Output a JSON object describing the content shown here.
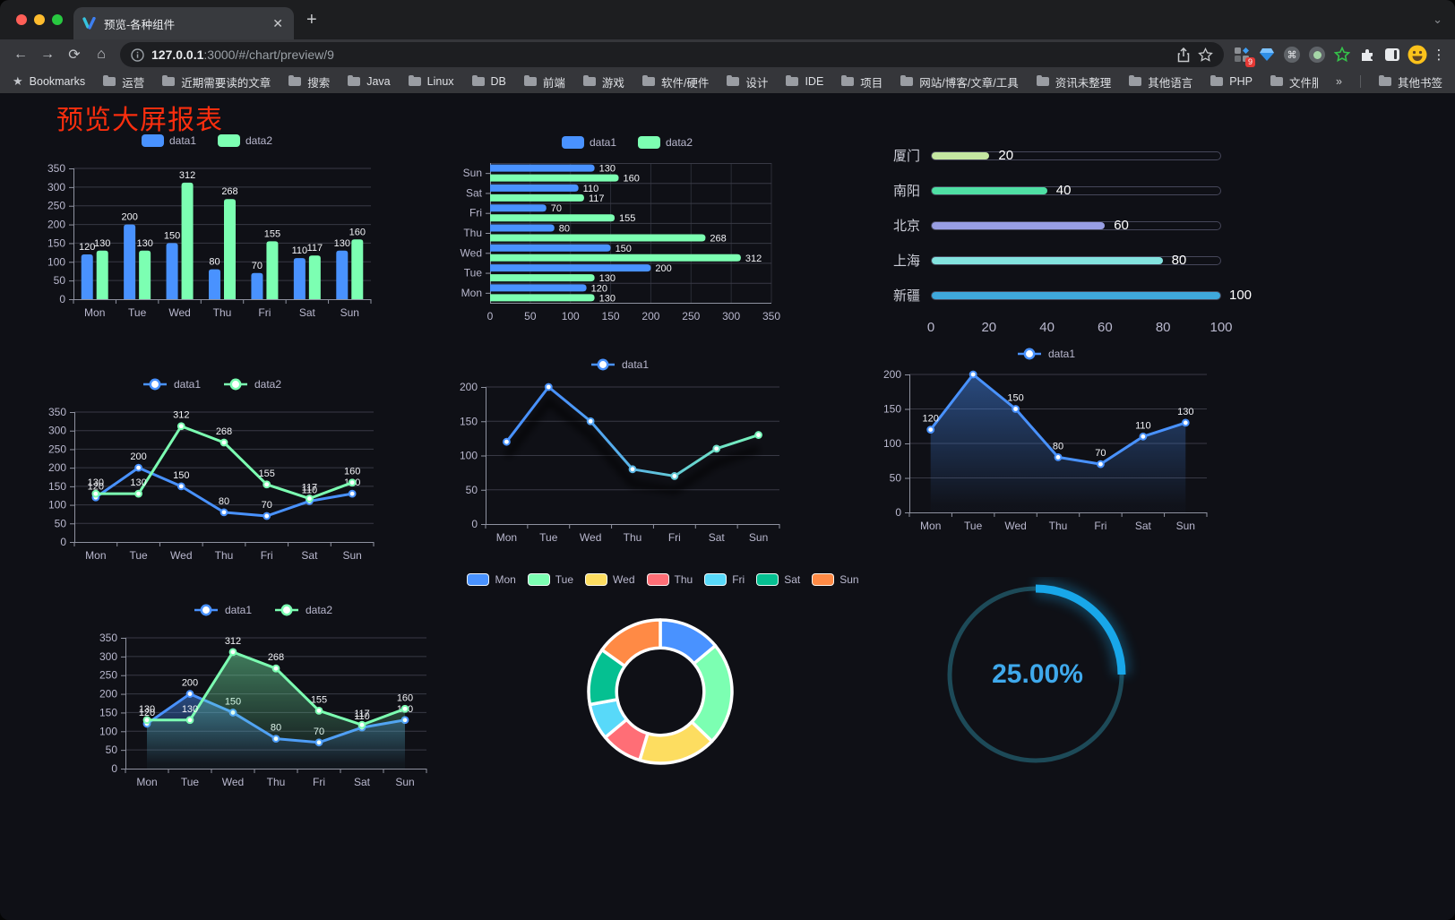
{
  "browser": {
    "tab": {
      "title": "预览-各种组件",
      "close_glyph": "✕",
      "new_tab_glyph": "+",
      "tab_search_glyph": "⌄"
    },
    "nav": {
      "back": "←",
      "forward": "→",
      "reload": "⟳",
      "home": "⌂"
    },
    "url": {
      "host": "127.0.0.1",
      "rest": ":3000/#/chart/preview/9"
    },
    "extensions": {
      "badge": "9",
      "command_glyph": "⌘"
    },
    "menu_glyph": "⋮",
    "bookmarks": {
      "star_glyph": "★",
      "star_label": "Bookmarks",
      "folders": [
        "运营",
        "近期需要读的文章",
        "搜索",
        "Java",
        "Linux",
        "DB",
        "前端",
        "游戏",
        "软件/硬件",
        "设计",
        "IDE",
        "项目",
        "网站/博客/文章/工具",
        "资讯未整理",
        "其他语言",
        "PHP",
        "文件服务器"
      ],
      "overflow_glyph": "»",
      "other_label": "其他书签"
    }
  },
  "page": {
    "title": "预览大屏报表"
  },
  "colors": {
    "data1": "#4992ff",
    "data2": "#7cffb2",
    "grid": "#383945",
    "grid_faint": "#2b2c36",
    "axis": "#8f92a0",
    "tick": "#b9b8ce",
    "value_label": "#f2f3f7",
    "red_title": "#fa2e0e",
    "page_bg": "#0f1016"
  },
  "chart_data": [
    {
      "id": "bar-vertical",
      "type": "bar",
      "categories": [
        "Mon",
        "Tue",
        "Wed",
        "Thu",
        "Fri",
        "Sat",
        "Sun"
      ],
      "series": [
        {
          "name": "data1",
          "color": "#4992ff",
          "values": [
            120,
            200,
            150,
            80,
            70,
            110,
            130
          ]
        },
        {
          "name": "data2",
          "color": "#7cffb2",
          "values": [
            130,
            130,
            312,
            268,
            155,
            117,
            160
          ]
        }
      ],
      "ylim": [
        0,
        350
      ],
      "yticks": [
        0,
        50,
        100,
        150,
        200,
        250,
        300,
        350
      ],
      "legend_position": "top",
      "value_labels": true,
      "grid": true
    },
    {
      "id": "bar-horizontal",
      "type": "bar",
      "orientation": "horizontal",
      "categories": [
        "Mon",
        "Tue",
        "Wed",
        "Thu",
        "Fri",
        "Sat",
        "Sun"
      ],
      "category_display_top_to_bottom": [
        "Sun",
        "Sat",
        "Fri",
        "Thu",
        "Wed",
        "Tue",
        "Mon"
      ],
      "series": [
        {
          "name": "data1",
          "color": "#4992ff",
          "values": [
            120,
            200,
            150,
            80,
            70,
            110,
            130
          ]
        },
        {
          "name": "data2",
          "color": "#7cffb2",
          "values": [
            130,
            130,
            312,
            268,
            155,
            117,
            160
          ]
        }
      ],
      "xlim": [
        0,
        350
      ],
      "xticks": [
        0,
        50,
        100,
        150,
        200,
        250,
        300,
        350
      ],
      "legend_position": "top",
      "value_labels": true,
      "grid": true
    },
    {
      "id": "progress-bars",
      "type": "bar",
      "orientation": "progress",
      "categories": [
        "厦门",
        "南阳",
        "北京",
        "上海",
        "新疆"
      ],
      "values": [
        20,
        40,
        60,
        80,
        100
      ],
      "colors": [
        "#c4e7a1",
        "#4fdfa4",
        "#989ee3",
        "#83e3df",
        "#3fa8dd"
      ],
      "xlim": [
        0,
        100
      ],
      "xticks": [
        0,
        20,
        40,
        60,
        80,
        100
      ]
    },
    {
      "id": "line-two-series",
      "type": "line",
      "categories": [
        "Mon",
        "Tue",
        "Wed",
        "Thu",
        "Fri",
        "Sat",
        "Sun"
      ],
      "series": [
        {
          "name": "data1",
          "color": "#4992ff",
          "values": [
            120,
            200,
            150,
            80,
            70,
            110,
            130
          ]
        },
        {
          "name": "data2",
          "color": "#7cffb2",
          "values": [
            130,
            130,
            312,
            268,
            155,
            117,
            160
          ]
        }
      ],
      "ylim": [
        0,
        350
      ],
      "yticks": [
        0,
        50,
        100,
        150,
        200,
        250,
        300,
        350
      ],
      "legend_position": "top",
      "value_labels": true,
      "markers": true
    },
    {
      "id": "line-gradient",
      "type": "line",
      "categories": [
        "Mon",
        "Tue",
        "Wed",
        "Thu",
        "Fri",
        "Sat",
        "Sun"
      ],
      "series": [
        {
          "name": "data1",
          "gradient": [
            "#4992ff",
            "#7cffb2"
          ],
          "values": [
            120,
            200,
            150,
            80,
            70,
            110,
            130
          ]
        }
      ],
      "ylim": [
        0,
        200
      ],
      "yticks": [
        0,
        50,
        100,
        150,
        200
      ],
      "legend_position": "top",
      "value_labels": false,
      "markers": true,
      "shadow": true
    },
    {
      "id": "line-area",
      "type": "area",
      "categories": [
        "Mon",
        "Tue",
        "Wed",
        "Thu",
        "Fri",
        "Sat",
        "Sun"
      ],
      "series": [
        {
          "name": "data1",
          "color": "#4992ff",
          "values": [
            120,
            200,
            150,
            80,
            70,
            110,
            130
          ]
        }
      ],
      "ylim": [
        0,
        200
      ],
      "yticks": [
        0,
        50,
        100,
        150,
        200
      ],
      "legend_position": "top",
      "value_labels": true,
      "markers": true
    },
    {
      "id": "area-two-series",
      "type": "area",
      "categories": [
        "Mon",
        "Tue",
        "Wed",
        "Thu",
        "Fri",
        "Sat",
        "Sun"
      ],
      "series": [
        {
          "name": "data1",
          "color": "#4992ff",
          "values": [
            120,
            200,
            150,
            80,
            70,
            110,
            130
          ]
        },
        {
          "name": "data2",
          "color": "#7cffb2",
          "values": [
            130,
            130,
            312,
            268,
            155,
            117,
            160
          ]
        }
      ],
      "ylim": [
        0,
        350
      ],
      "yticks": [
        0,
        50,
        100,
        150,
        200,
        250,
        300,
        350
      ],
      "legend_position": "top",
      "value_labels": true,
      "markers": true
    },
    {
      "id": "donut",
      "type": "pie",
      "categories": [
        "Mon",
        "Tue",
        "Wed",
        "Thu",
        "Fri",
        "Sat",
        "Sun"
      ],
      "values": [
        120,
        200,
        150,
        80,
        70,
        110,
        130
      ],
      "colors": [
        "#4992ff",
        "#7cffb2",
        "#fddd60",
        "#ff6e76",
        "#58d9f9",
        "#05c091",
        "#ff8a45"
      ],
      "inner_radius_ratio": 0.61,
      "legend_position": "top"
    },
    {
      "id": "gauge",
      "type": "gauge",
      "value": 25,
      "max": 100,
      "label": "25.00%",
      "color": "#18a7e9",
      "track_color": "#1d4a58"
    }
  ]
}
